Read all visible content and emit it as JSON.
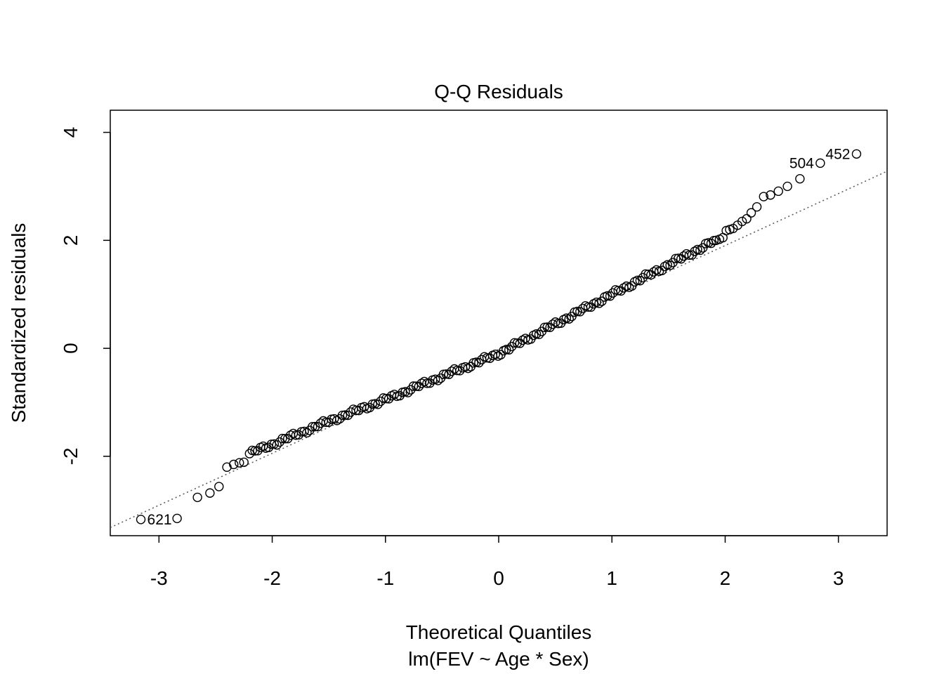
{
  "chart_data": {
    "type": "scatter",
    "title": "Q-Q Residuals",
    "xlabel": "Theoretical Quantiles",
    "subtitle": "lm(FEV ~ Age * Sex)",
    "ylabel": "Standardized residuals",
    "xlim": [
      -3.43,
      3.43
    ],
    "ylim": [
      -3.47,
      4.41
    ],
    "xticks": [
      "-3",
      "-2",
      "-1",
      "0",
      "1",
      "2",
      "3"
    ],
    "yticks": [
      "-2",
      "0",
      "2",
      "4"
    ],
    "grid": false,
    "legend": "none",
    "reference_line": {
      "style": "dotted",
      "color": "#555555",
      "x": [
        -3.43,
        3.43
      ],
      "y": [
        -3.32,
        3.28
      ]
    },
    "n_points": 654,
    "lower_tail": {
      "x": [
        -3.16,
        -2.84,
        -2.66,
        -2.55,
        -2.47,
        -2.4,
        -2.34,
        -2.29,
        -2.25
      ],
      "y": [
        -3.17,
        -3.15,
        -2.76,
        -2.68,
        -2.56,
        -2.2,
        -2.15,
        -2.12,
        -2.11
      ]
    },
    "upper_tail": {
      "x": [
        1.92,
        1.95,
        1.98,
        2.01,
        2.04,
        2.07,
        2.11,
        2.15,
        2.19,
        2.23,
        2.28,
        2.34,
        2.4,
        2.47,
        2.55,
        2.66,
        2.84,
        3.16
      ],
      "y": [
        2.0,
        2.02,
        2.05,
        2.18,
        2.2,
        2.22,
        2.28,
        2.35,
        2.4,
        2.51,
        2.62,
        2.81,
        2.84,
        2.91,
        3.0,
        3.14,
        3.43,
        3.6
      ]
    },
    "body_curve": {
      "x": [
        -2.2,
        -1.5,
        -1.0,
        -0.5,
        0.0,
        0.5,
        1.0,
        1.5,
        1.9
      ],
      "y": [
        -1.95,
        -1.35,
        -0.95,
        -0.52,
        -0.1,
        0.45,
        1.0,
        1.55,
        1.98
      ]
    },
    "point_labels": [
      {
        "text": "621",
        "x": -3.16,
        "y": -3.17,
        "side": "right"
      },
      {
        "text": "504",
        "x": 2.84,
        "y": 3.43,
        "side": "left"
      },
      {
        "text": "452",
        "x": 3.16,
        "y": 3.6,
        "side": "left"
      }
    ]
  }
}
